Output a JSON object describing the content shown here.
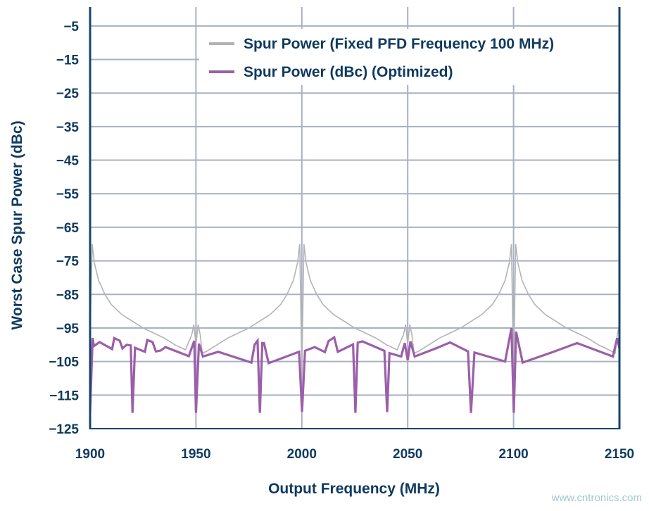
{
  "chart_data": {
    "type": "line",
    "title": "",
    "xlabel": "Output Frequency (MHz)",
    "ylabel": "Worst Case Spur Power (dBc)",
    "xlim": [
      1900,
      2150
    ],
    "ylim": [
      -125,
      0
    ],
    "xticks": [
      "1900",
      "1950",
      "2000",
      "2050",
      "2100",
      "2150"
    ],
    "yticks": [
      "−5",
      "−15",
      "−25",
      "−35",
      "−45",
      "−55",
      "−65",
      "−75",
      "−85",
      "−95",
      "−105",
      "−115",
      "−125"
    ],
    "grid": true,
    "legend_position": "top-right",
    "series": [
      {
        "name": "Spur Power (Fixed PFD Frequency 100 MHz)",
        "color": "#b3b3b6",
        "x": [
          1900,
          1901,
          1902,
          1904,
          1907,
          1910,
          1915,
          1920,
          1925,
          1930,
          1935,
          1940,
          1945,
          1948,
          1949,
          1950,
          1951,
          1952,
          1953,
          1955,
          1960,
          1965,
          1970,
          1975,
          1980,
          1985,
          1990,
          1993,
          1996,
          1998,
          1999,
          2000,
          2001,
          2002,
          2004,
          2007,
          2010,
          2015,
          2020,
          2025,
          2030,
          2035,
          2040,
          2045,
          2048,
          2049,
          2050,
          2051,
          2052,
          2053,
          2055,
          2060,
          2065,
          2070,
          2075,
          2080,
          2085,
          2090,
          2093,
          2096,
          2098,
          2099,
          2100,
          2101,
          2102,
          2104,
          2107,
          2110,
          2115,
          2120,
          2125,
          2130,
          2135,
          2140,
          2145,
          2148,
          2149,
          2150
        ],
        "y": [
          -97,
          -70,
          -75.5,
          -80.8,
          -85,
          -88,
          -91,
          -93,
          -95,
          -96.5,
          -98,
          -100,
          -101.5,
          -97,
          -94,
          -100,
          -94,
          -97,
          -102.5,
          -102,
          -100,
          -98,
          -96.5,
          -95,
          -93,
          -91,
          -88,
          -85,
          -80.8,
          -75.5,
          -70,
          -108,
          -70,
          -75.5,
          -80.8,
          -85,
          -88,
          -91,
          -93,
          -95,
          -96.5,
          -98,
          -100,
          -101.5,
          -97,
          -94,
          -100,
          -94,
          -97,
          -102.5,
          -102,
          -100,
          -98,
          -96.5,
          -95,
          -93,
          -91,
          -88,
          -85,
          -80.8,
          -75.5,
          -70,
          -110,
          -70,
          -75.5,
          -80.8,
          -85,
          -88,
          -91,
          -93,
          -95,
          -96.5,
          -98,
          -100,
          -101.5,
          -102.5,
          -97,
          -94
        ]
      },
      {
        "name": "Spur Power (dBc) (Optimized)",
        "color": "#9b5fa9",
        "x": [
          1900,
          1901.2,
          1901.8,
          1904.5,
          1910.4,
          1911.4,
          1914,
          1915.3,
          1917.3,
          1919.2,
          1920,
          1921.2,
          1925.9,
          1927,
          1929.5,
          1931.1,
          1933.4,
          1935.6,
          1946.6,
          1949.2,
          1950,
          1951.4,
          1953.3,
          1960.5,
          1976.2,
          1977.7,
          1979.1,
          1980.2,
          1981.3,
          1982.1,
          1984.3,
          1998.7,
          2000.1,
          2001.5,
          2006.1,
          2010.9,
          2012.6,
          2015.3,
          2017,
          2024.2,
          2025.3,
          2026.4,
          2028.6,
          2039,
          2040.3,
          2041.4,
          2046.9,
          2048.6,
          2050,
          2051.3,
          2053.3,
          2063.6,
          2070,
          2078.5,
          2079.9,
          2081.5,
          2096,
          2099,
          2100.1,
          2101.2,
          2104.3,
          2118.9,
          2130,
          2146.9,
          2148.9,
          2150
        ],
        "y": [
          -120,
          -98,
          -100.4,
          -99.2,
          -101.3,
          -98,
          -98.8,
          -101.1,
          -100,
          -100.2,
          -120.3,
          -100.9,
          -102.1,
          -98.6,
          -99.2,
          -102,
          -101.7,
          -100.7,
          -103.4,
          -98.8,
          -120.3,
          -99.7,
          -103.5,
          -102.1,
          -105.3,
          -100,
          -98.8,
          -120.3,
          -99.5,
          -99.5,
          -105.5,
          -102.1,
          -120,
          -101.8,
          -100.7,
          -102.2,
          -98.9,
          -97.8,
          -102.1,
          -99.9,
          -120.3,
          -99.4,
          -99,
          -101.8,
          -120.1,
          -102.5,
          -103.5,
          -99.5,
          -104.6,
          -99,
          -103.5,
          -101,
          -99.3,
          -102,
          -120.3,
          -102.3,
          -105,
          -95,
          -120.3,
          -96.1,
          -105.3,
          -102.1,
          -99.5,
          -103.5,
          -98,
          -101
        ]
      }
    ]
  },
  "watermark": "www.cntronics.com"
}
